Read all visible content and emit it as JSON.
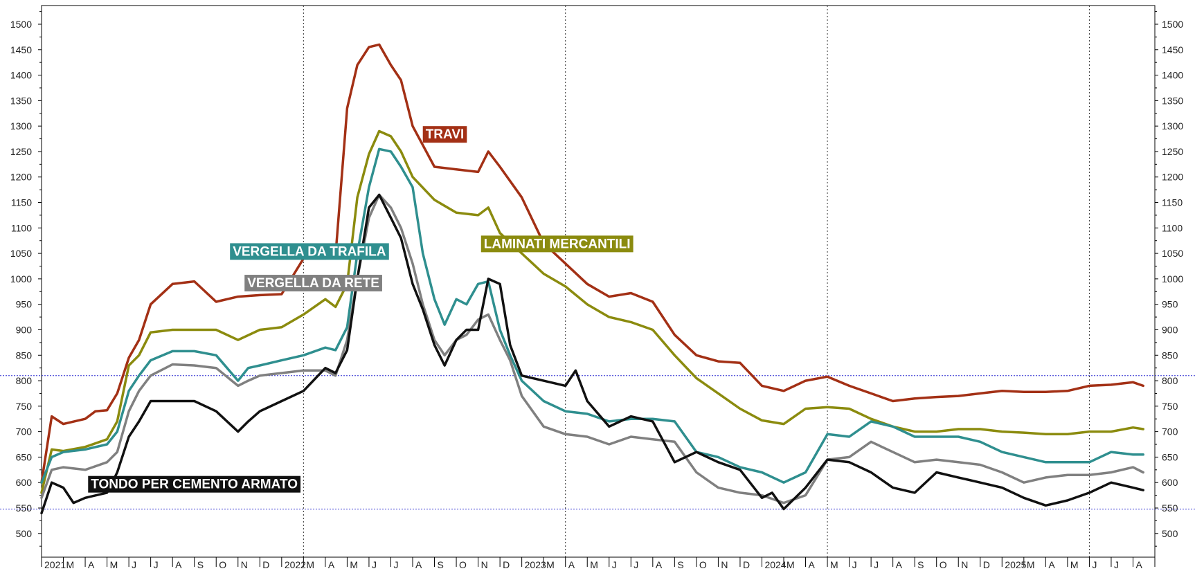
{
  "chart_data": {
    "type": "line",
    "ylim": [
      470,
      1550
    ],
    "y_ticks": [
      500,
      550,
      600,
      650,
      700,
      750,
      800,
      850,
      900,
      950,
      1000,
      1050,
      1100,
      1150,
      1200,
      1250,
      1300,
      1350,
      1400,
      1450,
      1500
    ],
    "x_range": [
      "2021-01",
      "2025-08"
    ],
    "month_labels": [
      "2021",
      "M",
      "A",
      "M",
      "J",
      "J",
      "A",
      "S",
      "O",
      "N",
      "D",
      "2022",
      "M",
      "A",
      "M",
      "J",
      "J",
      "A",
      "S",
      "O",
      "N",
      "D",
      "2023",
      "M",
      "A",
      "M",
      "J",
      "J",
      "A",
      "S",
      "O",
      "N",
      "D",
      "2024",
      "M",
      "A",
      "M",
      "J",
      "J",
      "A",
      "S",
      "O",
      "N",
      "D",
      "2025",
      "M",
      "A",
      "M",
      "J",
      "J",
      "A"
    ],
    "year_dividers": [
      "2022-01",
      "2023-01",
      "2024-01",
      "2025-01"
    ],
    "reference_lines": [
      810,
      548
    ],
    "grid": false,
    "right_axis": true,
    "series": [
      {
        "name": "TRAVI",
        "color": "#a33015",
        "x": [
          "2021-01",
          "2021-01-15",
          "2021-02",
          "2021-03",
          "2021-03-15",
          "2021-04",
          "2021-04-15",
          "2021-05",
          "2021-05-15",
          "2021-06",
          "2021-07",
          "2021-08",
          "2021-09",
          "2021-10",
          "2021-11",
          "2021-12",
          "2022-01",
          "2022-02",
          "2022-02-15",
          "2022-03",
          "2022-03-15",
          "2022-04",
          "2022-04-15",
          "2022-05",
          "2022-05-15",
          "2022-06",
          "2022-07",
          "2022-08",
          "2022-09",
          "2022-09-15",
          "2022-10",
          "2022-11",
          "2022-12",
          "2023-01",
          "2023-02",
          "2023-03",
          "2023-04",
          "2023-05",
          "2023-06",
          "2023-07",
          "2023-08",
          "2023-09",
          "2023-10",
          "2023-11",
          "2023-12",
          "2024-01",
          "2024-02",
          "2024-03",
          "2024-04",
          "2024-05",
          "2024-06",
          "2024-07",
          "2024-08",
          "2024-09",
          "2024-10",
          "2024-11",
          "2024-12",
          "2025-01",
          "2025-02",
          "2025-03",
          "2025-03-15"
        ],
        "values": [
          600,
          730,
          715,
          725,
          740,
          742,
          775,
          845,
          880,
          950,
          990,
          995,
          955,
          965,
          968,
          970,
          1040,
          1040,
          1045,
          1335,
          1420,
          1455,
          1460,
          1420,
          1390,
          1300,
          1220,
          1215,
          1210,
          1250,
          1220,
          1160,
          1070,
          1030,
          990,
          965,
          972,
          955,
          890,
          850,
          838,
          835,
          790,
          780,
          800,
          808,
          790,
          775,
          760,
          765,
          768,
          770,
          775,
          780,
          778,
          778,
          780,
          790,
          792,
          797,
          790
        ]
      },
      {
        "name": "LAMINATI MERCANTILI",
        "color": "#8b8b0e",
        "x": [
          "2021-01",
          "2021-01-15",
          "2021-02",
          "2021-03",
          "2021-04",
          "2021-04-15",
          "2021-05",
          "2021-05-15",
          "2021-06",
          "2021-07",
          "2021-08",
          "2021-09",
          "2021-10",
          "2021-11",
          "2021-12",
          "2022-01",
          "2022-02",
          "2022-02-15",
          "2022-03",
          "2022-03-15",
          "2022-04",
          "2022-04-15",
          "2022-05",
          "2022-05-15",
          "2022-06",
          "2022-07",
          "2022-08",
          "2022-09",
          "2022-09-15",
          "2022-10",
          "2022-11",
          "2022-12",
          "2023-01",
          "2023-02",
          "2023-03",
          "2023-04",
          "2023-05",
          "2023-06",
          "2023-07",
          "2023-08",
          "2023-09",
          "2023-10",
          "2023-11",
          "2023-12",
          "2024-01",
          "2024-02",
          "2024-03",
          "2024-04",
          "2024-05",
          "2024-06",
          "2024-07",
          "2024-08",
          "2024-09",
          "2024-10",
          "2024-11",
          "2024-12",
          "2025-01",
          "2025-02",
          "2025-03",
          "2025-03-15"
        ],
        "values": [
          580,
          665,
          662,
          670,
          685,
          720,
          830,
          850,
          895,
          900,
          900,
          900,
          880,
          900,
          905,
          930,
          960,
          945,
          990,
          1160,
          1245,
          1290,
          1280,
          1250,
          1200,
          1155,
          1130,
          1125,
          1140,
          1090,
          1050,
          1010,
          985,
          950,
          925,
          915,
          900,
          850,
          805,
          775,
          745,
          722,
          715,
          745,
          748,
          745,
          725,
          710,
          700,
          700,
          705,
          705,
          700,
          698,
          695,
          695,
          700,
          700,
          708,
          705
        ]
      },
      {
        "name": "VERGELLA DA TRAFILA",
        "color": "#2f8f8f",
        "x": [
          "2021-01",
          "2021-01-15",
          "2021-02",
          "2021-03",
          "2021-04",
          "2021-04-15",
          "2021-05",
          "2021-05-15",
          "2021-06",
          "2021-07",
          "2021-08",
          "2021-09",
          "2021-10",
          "2021-10-15",
          "2021-11",
          "2021-12",
          "2022-01",
          "2022-02",
          "2022-02-15",
          "2022-03",
          "2022-03-15",
          "2022-04",
          "2022-04-15",
          "2022-05",
          "2022-05-15",
          "2022-06",
          "2022-06-15",
          "2022-07",
          "2022-07-15",
          "2022-08",
          "2022-08-15",
          "2022-09",
          "2022-09-15",
          "2022-10",
          "2022-10-15",
          "2022-11",
          "2022-12",
          "2023-01",
          "2023-02",
          "2023-03",
          "2023-04",
          "2023-05",
          "2023-06",
          "2023-07",
          "2023-08",
          "2023-09",
          "2023-10",
          "2023-11",
          "2023-12",
          "2024-01",
          "2024-02",
          "2024-03",
          "2024-04",
          "2024-05",
          "2024-06",
          "2024-07",
          "2024-08",
          "2024-09",
          "2024-10",
          "2024-11",
          "2024-12",
          "2025-01",
          "2025-02",
          "2025-03",
          "2025-03-15"
        ],
        "values": [
          600,
          650,
          660,
          665,
          675,
          700,
          780,
          810,
          840,
          858,
          858,
          850,
          800,
          825,
          830,
          840,
          850,
          865,
          860,
          905,
          1050,
          1180,
          1255,
          1250,
          1220,
          1180,
          1050,
          960,
          910,
          960,
          950,
          990,
          995,
          900,
          850,
          800,
          760,
          740,
          735,
          720,
          725,
          725,
          720,
          660,
          650,
          630,
          620,
          600,
          620,
          695,
          690,
          720,
          710,
          690,
          690,
          690,
          680,
          660,
          650,
          640,
          640,
          640,
          660,
          655,
          655
        ]
      },
      {
        "name": "VERGELLA DA RETE",
        "color": "#808080",
        "x": [
          "2021-01",
          "2021-01-15",
          "2021-02",
          "2021-03",
          "2021-04",
          "2021-04-15",
          "2021-05",
          "2021-05-15",
          "2021-06",
          "2021-07",
          "2021-08",
          "2021-09",
          "2021-10",
          "2021-10-15",
          "2021-11",
          "2021-12",
          "2022-01",
          "2022-02",
          "2022-02-15",
          "2022-03",
          "2022-03-15",
          "2022-04",
          "2022-04-15",
          "2022-05",
          "2022-05-15",
          "2022-06",
          "2022-06-15",
          "2022-07",
          "2022-07-15",
          "2022-08",
          "2022-08-15",
          "2022-09",
          "2022-09-15",
          "2022-10",
          "2022-10-15",
          "2022-11",
          "2022-12",
          "2023-01",
          "2023-02",
          "2023-03",
          "2023-04",
          "2023-05",
          "2023-06",
          "2023-07",
          "2023-08",
          "2023-09",
          "2023-10",
          "2023-11",
          "2023-12",
          "2024-01",
          "2024-02",
          "2024-03",
          "2024-04",
          "2024-05",
          "2024-06",
          "2024-07",
          "2024-08",
          "2024-09",
          "2024-10",
          "2024-11",
          "2024-12",
          "2025-01",
          "2025-02",
          "2025-03",
          "2025-03-15"
        ],
        "values": [
          570,
          625,
          630,
          625,
          640,
          660,
          740,
          780,
          810,
          832,
          830,
          825,
          790,
          800,
          810,
          815,
          820,
          820,
          810,
          880,
          1000,
          1120,
          1165,
          1140,
          1100,
          1030,
          950,
          880,
          850,
          880,
          890,
          920,
          930,
          880,
          840,
          770,
          710,
          695,
          690,
          675,
          690,
          685,
          680,
          620,
          590,
          580,
          575,
          560,
          575,
          645,
          650,
          680,
          660,
          640,
          645,
          640,
          635,
          620,
          600,
          610,
          615,
          615,
          620,
          630,
          620
        ]
      },
      {
        "name": "TONDO PER CEMENTO ARMATO",
        "color": "#111111",
        "x": [
          "2021-01",
          "2021-01-15",
          "2021-02",
          "2021-02-15",
          "2021-03",
          "2021-04",
          "2021-04-15",
          "2021-05",
          "2021-05-15",
          "2021-06",
          "2021-07",
          "2021-08",
          "2021-09",
          "2021-10",
          "2021-10-15",
          "2021-11",
          "2021-12",
          "2022-01",
          "2022-02",
          "2022-02-15",
          "2022-03",
          "2022-03-15",
          "2022-04",
          "2022-04-15",
          "2022-05",
          "2022-05-15",
          "2022-06",
          "2022-06-15",
          "2022-07",
          "2022-07-15",
          "2022-08",
          "2022-08-15",
          "2022-09",
          "2022-09-15",
          "2022-10",
          "2022-10-15",
          "2022-11",
          "2022-12",
          "2023-01",
          "2023-01-15",
          "2023-02",
          "2023-03",
          "2023-04",
          "2023-05",
          "2023-06",
          "2023-07",
          "2023-08",
          "2023-09",
          "2023-10",
          "2023-10-15",
          "2023-11",
          "2023-12",
          "2024-01",
          "2024-02",
          "2024-03",
          "2024-04",
          "2024-05",
          "2024-06",
          "2024-07",
          "2024-08",
          "2024-09",
          "2024-10",
          "2024-11",
          "2024-12",
          "2025-01",
          "2025-02",
          "2025-03",
          "2025-03-15"
        ],
        "values": [
          540,
          600,
          590,
          560,
          570,
          580,
          620,
          690,
          720,
          760,
          760,
          760,
          740,
          700,
          720,
          740,
          760,
          780,
          825,
          815,
          860,
          1000,
          1140,
          1165,
          1120,
          1080,
          990,
          940,
          870,
          830,
          880,
          900,
          900,
          1000,
          990,
          870,
          810,
          800,
          790,
          820,
          760,
          710,
          730,
          720,
          640,
          660,
          640,
          625,
          570,
          580,
          548,
          590,
          645,
          640,
          620,
          590,
          580,
          620,
          610,
          600,
          590,
          570,
          555,
          565,
          580,
          600,
          590,
          585
        ]
      }
    ],
    "labels": [
      {
        "text": "TRAVI",
        "series": "TRAVI",
        "x": "2022-06-15",
        "y": 1285
      },
      {
        "text": "LAMINATI MERCANTILI",
        "series": "LAMINATI MERCANTILI",
        "x": "2022-09-05",
        "y": 1070
      },
      {
        "text": "VERGELLA DA TRAFILA",
        "series": "VERGELLA DA TRAFILA",
        "x": "2021-09-20",
        "y": 1055
      },
      {
        "text": "VERGELLA DA RETE",
        "series": "VERGELLA DA RETE",
        "x": "2021-10-10",
        "y": 993
      },
      {
        "text": "TONDO PER CEMENTO ARMATO",
        "series": "TONDO PER CEMENTO ARMATO",
        "x": "2021-03-05",
        "y": 598
      }
    ]
  }
}
